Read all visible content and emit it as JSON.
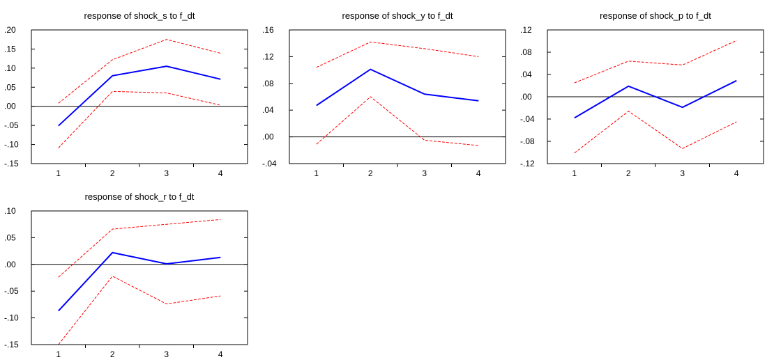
{
  "chart_data": [
    {
      "type": "line",
      "title": "response of shock_s to f_dt",
      "categories": [
        "1",
        "2",
        "3",
        "4"
      ],
      "ylim": [
        -0.15,
        0.2
      ],
      "yticks": [
        -0.15,
        -0.1,
        -0.05,
        0.0,
        0.05,
        0.1,
        0.15,
        0.2
      ],
      "ytick_labels": [
        "-.15",
        "-.10",
        "-.05",
        ".00",
        ".05",
        ".10",
        ".15",
        ".20"
      ],
      "zero_line": true,
      "series": [
        {
          "values": [
            -0.051,
            0.08,
            0.105,
            0.071
          ],
          "color": "#0000ff",
          "style": "solid"
        },
        {
          "values": [
            0.008,
            0.122,
            0.175,
            0.139
          ],
          "color": "#ff0000",
          "style": "dashed"
        },
        {
          "values": [
            -0.109,
            0.039,
            0.035,
            0.003
          ],
          "color": "#ff0000",
          "style": "dashed"
        }
      ]
    },
    {
      "type": "line",
      "title": "response of shock_y to f_dt",
      "categories": [
        "1",
        "2",
        "3",
        "4"
      ],
      "ylim": [
        -0.04,
        0.16
      ],
      "yticks": [
        -0.04,
        0.0,
        0.04,
        0.08,
        0.12,
        0.16
      ],
      "ytick_labels": [
        "-.04",
        ".00",
        ".04",
        ".08",
        ".12",
        ".16"
      ],
      "zero_line": true,
      "series": [
        {
          "values": [
            0.047,
            0.101,
            0.064,
            0.054
          ],
          "color": "#0000ff",
          "style": "solid"
        },
        {
          "values": [
            0.104,
            0.142,
            0.132,
            0.12
          ],
          "color": "#ff0000",
          "style": "dashed"
        },
        {
          "values": [
            -0.011,
            0.06,
            -0.005,
            -0.013
          ],
          "color": "#ff0000",
          "style": "dashed"
        }
      ]
    },
    {
      "type": "line",
      "title": "response of shock_p to f_dt",
      "categories": [
        "1",
        "2",
        "3",
        "4"
      ],
      "ylim": [
        -0.12,
        0.12
      ],
      "yticks": [
        -0.12,
        -0.08,
        -0.04,
        0.0,
        0.04,
        0.08,
        0.12
      ],
      "ytick_labels": [
        "-.12",
        "-.08",
        "-.04",
        ".00",
        ".04",
        ".08",
        ".12"
      ],
      "zero_line": true,
      "series": [
        {
          "values": [
            -0.038,
            0.019,
            -0.019,
            0.029
          ],
          "color": "#0000ff",
          "style": "solid"
        },
        {
          "values": [
            0.025,
            0.064,
            0.057,
            0.101
          ],
          "color": "#ff0000",
          "style": "dashed"
        },
        {
          "values": [
            -0.101,
            -0.026,
            -0.093,
            -0.045
          ],
          "color": "#ff0000",
          "style": "dashed"
        }
      ]
    },
    {
      "type": "line",
      "title": "response of shock_r to f_dt",
      "categories": [
        "1",
        "2",
        "3",
        "4"
      ],
      "ylim": [
        -0.15,
        0.1
      ],
      "yticks": [
        -0.15,
        -0.1,
        -0.05,
        0.0,
        0.05,
        0.1
      ],
      "ytick_labels": [
        "-.15",
        "-.10",
        "-.05",
        ".00",
        ".05",
        ".10"
      ],
      "zero_line": true,
      "series": [
        {
          "values": [
            -0.087,
            0.022,
            0.001,
            0.013
          ],
          "color": "#0000ff",
          "style": "solid"
        },
        {
          "values": [
            -0.024,
            0.066,
            0.075,
            0.084
          ],
          "color": "#ff0000",
          "style": "dashed"
        },
        {
          "values": [
            -0.15,
            -0.022,
            -0.074,
            -0.059
          ],
          "color": "#ff0000",
          "style": "dashed"
        }
      ]
    }
  ]
}
